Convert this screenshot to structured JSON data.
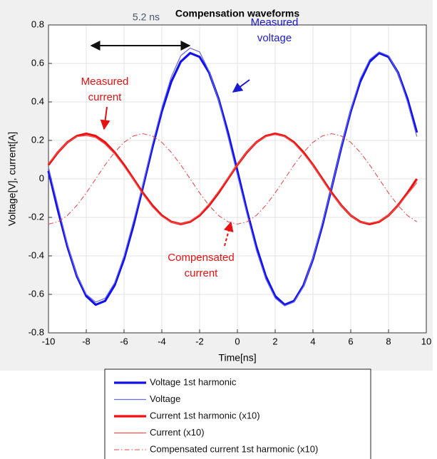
{
  "chart_data": {
    "type": "line",
    "title": "Compensation waveforms",
    "xlabel": "Time[ns]",
    "ylabel": "Voltage[V], current[A]",
    "xlim": [
      -10,
      10
    ],
    "xticks": [
      -10,
      -8,
      -6,
      -4,
      -2,
      0,
      2,
      4,
      6,
      8,
      10
    ],
    "ylim": [
      -0.8,
      0.8
    ],
    "yticks": [
      -0.8,
      -0.6,
      -0.4,
      -0.2,
      0,
      0.2,
      0.4,
      0.6,
      0.8
    ],
    "grid": true,
    "legend": "bottom",
    "x": [
      -10,
      -9.5,
      -9,
      -8.5,
      -8,
      -7.5,
      -7,
      -6.5,
      -6,
      -5.5,
      -5,
      -4.5,
      -4,
      -3.5,
      -3,
      -2.5,
      -2,
      -1.5,
      -1,
      -0.5,
      0,
      0.5,
      1,
      1.5,
      2,
      2.5,
      3,
      3.5,
      4,
      4.5,
      5,
      5.5,
      6,
      6.5,
      7,
      7.5,
      8,
      8.5,
      9,
      9.5
    ],
    "series": [
      {
        "name": "Voltage 1st harmonic",
        "color": "#1010f0",
        "line_width": 3.2,
        "style": "solid",
        "values": [
          0.041,
          -0.163,
          -0.351,
          -0.505,
          -0.609,
          -0.654,
          -0.634,
          -0.553,
          -0.417,
          -0.241,
          -0.041,
          0.163,
          0.351,
          0.505,
          0.609,
          0.654,
          0.634,
          0.553,
          0.417,
          0.241,
          0.041,
          -0.163,
          -0.351,
          -0.505,
          -0.609,
          -0.654,
          -0.634,
          -0.553,
          -0.417,
          -0.241,
          -0.041,
          0.163,
          0.351,
          0.505,
          0.609,
          0.654,
          0.634,
          0.553,
          0.417,
          0.241
        ]
      },
      {
        "name": "Voltage",
        "color": "#6868e8",
        "line_width": 1.2,
        "style": "solid",
        "values": [
          0.06,
          -0.14,
          -0.34,
          -0.5,
          -0.6,
          -0.64,
          -0.62,
          -0.54,
          -0.4,
          -0.22,
          -0.03,
          0.18,
          0.37,
          0.53,
          0.64,
          0.68,
          0.66,
          0.56,
          0.41,
          0.22,
          0.02,
          -0.18,
          -0.37,
          -0.52,
          -0.62,
          -0.66,
          -0.64,
          -0.56,
          -0.41,
          -0.23,
          -0.04,
          0.17,
          0.36,
          0.52,
          0.62,
          0.66,
          0.64,
          0.55,
          0.4,
          0.22
        ]
      },
      {
        "name": "Current 1st harmonic (x10)",
        "color": "#f01010",
        "line_width": 3.2,
        "style": "solid",
        "values": [
          0.073,
          0.138,
          0.19,
          0.223,
          0.235,
          0.223,
          0.19,
          0.138,
          0.073,
          0,
          -0.073,
          -0.138,
          -0.19,
          -0.223,
          -0.235,
          -0.223,
          -0.19,
          -0.138,
          -0.073,
          0,
          0.073,
          0.138,
          0.19,
          0.223,
          0.235,
          0.223,
          0.19,
          0.138,
          0.073,
          0,
          -0.073,
          -0.138,
          -0.19,
          -0.223,
          -0.235,
          -0.223,
          -0.19,
          -0.138,
          -0.073,
          0
        ]
      },
      {
        "name": "Current (x10)",
        "color": "#f05050",
        "line_width": 1.2,
        "style": "solid",
        "values": [
          0.08,
          0.14,
          0.19,
          0.22,
          0.225,
          0.215,
          0.18,
          0.13,
          0.065,
          -0.005,
          -0.08,
          -0.145,
          -0.195,
          -0.225,
          -0.235,
          -0.22,
          -0.185,
          -0.13,
          -0.065,
          0.005,
          0.075,
          0.14,
          0.19,
          0.22,
          0.23,
          0.22,
          0.185,
          0.13,
          0.07,
          -0.005,
          -0.08,
          -0.14,
          -0.19,
          -0.225,
          -0.23,
          -0.22,
          -0.19,
          -0.14,
          -0.08,
          -0.02
        ]
      },
      {
        "name": "Compensated current 1st harmonic (x10)",
        "color": "#f04040",
        "line_width": 1,
        "style": "dash-dot",
        "values": [
          -0.235,
          -0.223,
          -0.19,
          -0.138,
          -0.073,
          0,
          0.073,
          0.138,
          0.19,
          0.223,
          0.235,
          0.223,
          0.19,
          0.138,
          0.073,
          0,
          -0.073,
          -0.138,
          -0.19,
          -0.223,
          -0.235,
          -0.223,
          -0.19,
          -0.138,
          -0.073,
          0,
          0.073,
          0.138,
          0.19,
          0.223,
          0.235,
          0.223,
          0.19,
          0.138,
          0.073,
          0,
          -0.073,
          -0.138,
          -0.19,
          -0.223
        ]
      }
    ],
    "annotations": [
      {
        "lines": [
          "5.2 ns"
        ],
        "color": "#44546a"
      },
      {
        "lines": [
          "Measured",
          "voltage"
        ],
        "color": "#1a1ad0"
      },
      {
        "lines": [
          "Measured",
          "current"
        ],
        "color": "#e81010"
      },
      {
        "lines": [
          "Compensated",
          "current"
        ],
        "color": "#e81010"
      }
    ]
  }
}
